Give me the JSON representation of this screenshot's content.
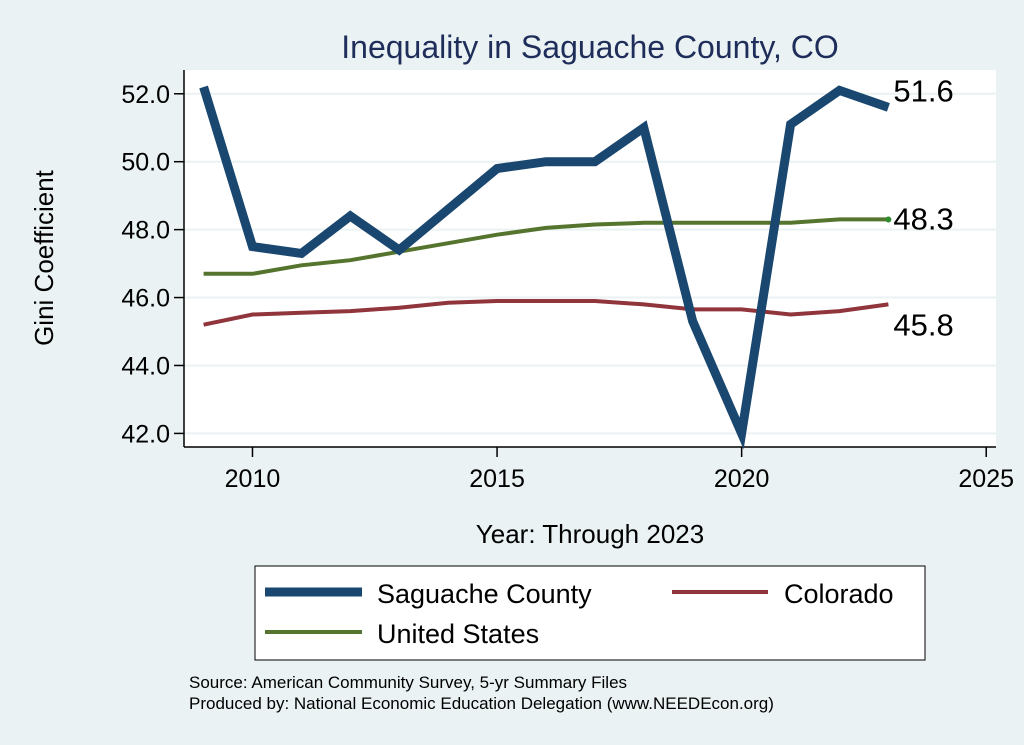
{
  "chart_data": {
    "type": "line",
    "title": "Inequality in Saguache County, CO",
    "xlabel": "Year: Through 2023",
    "ylabel": "Gini Coefficient",
    "xlim": [
      2008.6,
      2025.2
    ],
    "ylim": [
      41.6,
      52.7
    ],
    "xticks": [
      2010,
      2015,
      2020,
      2025
    ],
    "xtick_labels": [
      "2010",
      "2015",
      "2020",
      "2025"
    ],
    "yticks": [
      42.0,
      44.0,
      46.0,
      48.0,
      50.0,
      52.0
    ],
    "ytick_labels": [
      "42.0",
      "44.0",
      "46.0",
      "48.0",
      "50.0",
      "52.0"
    ],
    "grid": true,
    "x": [
      2009,
      2010,
      2011,
      2012,
      2013,
      2014,
      2015,
      2016,
      2017,
      2018,
      2019,
      2020,
      2021,
      2022,
      2023
    ],
    "series": [
      {
        "name": "Saguache County",
        "color": "#1a476f",
        "values": [
          52.2,
          47.5,
          47.3,
          48.4,
          47.4,
          48.6,
          49.8,
          50.0,
          50.0,
          51.0,
          45.3,
          42.0,
          51.1,
          52.1,
          51.6
        ],
        "end_label": "51.6"
      },
      {
        "name": "Colorado",
        "color": "#90353b",
        "values": [
          45.2,
          45.5,
          45.55,
          45.6,
          45.7,
          45.85,
          45.9,
          45.9,
          45.9,
          45.8,
          45.65,
          45.65,
          45.5,
          45.6,
          45.8
        ],
        "end_label": "45.8"
      },
      {
        "name": "United States",
        "color": "#55752f",
        "values": [
          46.7,
          46.7,
          46.95,
          47.1,
          47.35,
          47.6,
          47.85,
          48.05,
          48.15,
          48.2,
          48.2,
          48.2,
          48.2,
          48.3,
          48.3
        ],
        "end_label": "48.3"
      }
    ],
    "legend": [
      {
        "name": "Saguache County",
        "color": "#1a476f"
      },
      {
        "name": "Colorado",
        "color": "#90353b"
      },
      {
        "name": "United States",
        "color": "#55752f"
      }
    ],
    "legend_position": "bottom"
  },
  "notes": {
    "source": "Source: American Community Survey, 5-yr Summary Files",
    "producer": "Produced by: National Economic Education Delegation (www.NEEDEcon.org)"
  }
}
